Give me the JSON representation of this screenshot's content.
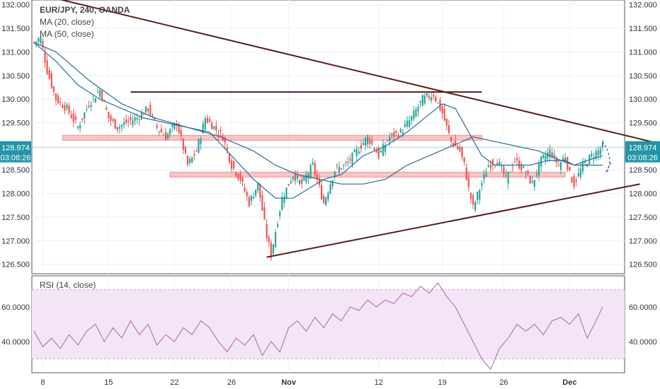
{
  "header": {
    "symbol": "EUR/JPY, 240, OANDA",
    "ma20": "MA (20, close)",
    "ma50": "MA (50, close)",
    "rsi": "RSI (14, close)"
  },
  "readout": {
    "price": "128.974",
    "countdown": "03:08:26"
  },
  "colors": {
    "up": "#26a69a",
    "down": "#ef5350",
    "ma20": "#1f6f9f",
    "ma50": "#2f6a8a",
    "trendline": "#5d1a1a",
    "zone": "#f08080",
    "rsi": "#b46cb4",
    "rsi_band": "#f3e5f5",
    "price_label": "#2196a6"
  },
  "chart_data": {
    "type": "candlestick",
    "title": "EUR/JPY, 240, OANDA",
    "price_axis": {
      "ylim": [
        126.3,
        132.1
      ],
      "ticks": [
        "132.000",
        "131.500",
        "131.000",
        "130.500",
        "130.000",
        "129.500",
        "129.000",
        "128.500",
        "128.000",
        "127.500",
        "127.000",
        "126.500"
      ]
    },
    "x_axis": {
      "ticks": [
        "8",
        "15",
        "22",
        "26",
        "Nov",
        "12",
        "19",
        "26",
        "Dec"
      ]
    },
    "last_price": 128.974,
    "anchors": [
      [
        0,
        131.2
      ],
      [
        3,
        131.3
      ],
      [
        6,
        130.6
      ],
      [
        10,
        130.0
      ],
      [
        15,
        129.8
      ],
      [
        20,
        129.4
      ],
      [
        25,
        129.9
      ],
      [
        30,
        130.2
      ],
      [
        34,
        129.6
      ],
      [
        38,
        129.4
      ],
      [
        42,
        129.5
      ],
      [
        47,
        129.6
      ],
      [
        52,
        129.8
      ],
      [
        56,
        129.4
      ],
      [
        60,
        129.2
      ],
      [
        65,
        129.5
      ],
      [
        70,
        128.6
      ],
      [
        74,
        128.9
      ],
      [
        78,
        129.6
      ],
      [
        82,
        129.4
      ],
      [
        86,
        129.2
      ],
      [
        90,
        128.6
      ],
      [
        94,
        128.3
      ],
      [
        98,
        127.8
      ],
      [
        102,
        128.2
      ],
      [
        106,
        127.1
      ],
      [
        108,
        126.7
      ],
      [
        110,
        127.2
      ],
      [
        113,
        127.9
      ],
      [
        118,
        128.4
      ],
      [
        122,
        128.2
      ],
      [
        127,
        128.6
      ],
      [
        132,
        127.8
      ],
      [
        137,
        128.5
      ],
      [
        142,
        128.6
      ],
      [
        147,
        128.9
      ],
      [
        152,
        129.2
      ],
      [
        157,
        128.8
      ],
      [
        162,
        129.2
      ],
      [
        167,
        129.3
      ],
      [
        172,
        129.6
      ],
      [
        177,
        130.0
      ],
      [
        182,
        130.1
      ],
      [
        186,
        129.7
      ],
      [
        190,
        129.1
      ],
      [
        194,
        128.9
      ],
      [
        196,
        128.6
      ],
      [
        198,
        128.1
      ],
      [
        200,
        127.7
      ],
      [
        203,
        128.1
      ],
      [
        207,
        128.6
      ],
      [
        211,
        128.7
      ],
      [
        215,
        128.3
      ],
      [
        219,
        128.7
      ],
      [
        223,
        128.5
      ],
      [
        227,
        128.2
      ],
      [
        231,
        128.7
      ],
      [
        235,
        128.9
      ],
      [
        239,
        128.6
      ],
      [
        242,
        128.8
      ],
      [
        244,
        128.4
      ],
      [
        246,
        128.2
      ],
      [
        250,
        128.6
      ],
      [
        254,
        128.8
      ],
      [
        257,
        128.9
      ],
      [
        259,
        129.0
      ]
    ],
    "ma20_anchors": [
      [
        0,
        131.2
      ],
      [
        10,
        130.8
      ],
      [
        20,
        130.3
      ],
      [
        30,
        130.0
      ],
      [
        40,
        129.8
      ],
      [
        50,
        129.6
      ],
      [
        60,
        129.5
      ],
      [
        70,
        129.4
      ],
      [
        80,
        129.3
      ],
      [
        90,
        128.8
      ],
      [
        100,
        128.3
      ],
      [
        110,
        127.9
      ],
      [
        118,
        127.9
      ],
      [
        125,
        128.1
      ],
      [
        132,
        128.3
      ],
      [
        140,
        128.4
      ],
      [
        150,
        128.8
      ],
      [
        160,
        129.0
      ],
      [
        170,
        129.3
      ],
      [
        178,
        129.6
      ],
      [
        186,
        129.9
      ],
      [
        192,
        129.8
      ],
      [
        198,
        129.3
      ],
      [
        204,
        128.8
      ],
      [
        210,
        128.6
      ],
      [
        218,
        128.6
      ],
      [
        226,
        128.6
      ],
      [
        234,
        128.7
      ],
      [
        242,
        128.7
      ],
      [
        246,
        128.6
      ],
      [
        252,
        128.7
      ],
      [
        259,
        128.8
      ]
    ],
    "ma50_anchors": [
      [
        0,
        131.2
      ],
      [
        10,
        131.0
      ],
      [
        25,
        130.4
      ],
      [
        40,
        129.9
      ],
      [
        55,
        129.6
      ],
      [
        70,
        129.4
      ],
      [
        85,
        129.2
      ],
      [
        100,
        128.9
      ],
      [
        110,
        128.6
      ],
      [
        120,
        128.4
      ],
      [
        130,
        128.3
      ],
      [
        140,
        128.2
      ],
      [
        150,
        128.2
      ],
      [
        160,
        128.3
      ],
      [
        170,
        128.6
      ],
      [
        180,
        128.8
      ],
      [
        190,
        129.0
      ],
      [
        200,
        129.2
      ],
      [
        210,
        129.1
      ],
      [
        220,
        129.0
      ],
      [
        230,
        128.9
      ],
      [
        240,
        128.7
      ],
      [
        246,
        128.6
      ],
      [
        252,
        128.6
      ],
      [
        259,
        128.6
      ]
    ],
    "trendlines": [
      {
        "from": [
          -5,
          132.3
        ],
        "to": [
          290,
          129.0
        ]
      },
      {
        "from": [
          106,
          126.65
        ],
        "to": [
          276,
          128.2
        ]
      },
      {
        "from": [
          44,
          130.15
        ],
        "to": [
          204,
          130.15
        ]
      }
    ],
    "zones": [
      {
        "from": [
          13,
          129.18
        ],
        "to": [
          204,
          129.18
        ]
      },
      {
        "from": [
          62,
          128.4
        ],
        "to": [
          242,
          128.4
        ]
      }
    ],
    "rsi": {
      "ylim": [
        22,
        78
      ],
      "ticks": [
        "60.0000",
        "40.0000"
      ],
      "band": [
        30,
        70
      ],
      "anchors": [
        [
          0,
          46
        ],
        [
          4,
          37
        ],
        [
          8,
          42
        ],
        [
          12,
          36
        ],
        [
          16,
          44
        ],
        [
          20,
          38
        ],
        [
          24,
          46
        ],
        [
          28,
          50
        ],
        [
          32,
          40
        ],
        [
          36,
          48
        ],
        [
          40,
          42
        ],
        [
          44,
          52
        ],
        [
          48,
          44
        ],
        [
          52,
          50
        ],
        [
          56,
          38
        ],
        [
          60,
          44
        ],
        [
          64,
          40
        ],
        [
          68,
          48
        ],
        [
          72,
          44
        ],
        [
          76,
          52
        ],
        [
          80,
          48
        ],
        [
          84,
          40
        ],
        [
          88,
          34
        ],
        [
          92,
          42
        ],
        [
          96,
          38
        ],
        [
          100,
          44
        ],
        [
          104,
          32
        ],
        [
          108,
          40
        ],
        [
          112,
          34
        ],
        [
          116,
          48
        ],
        [
          120,
          52
        ],
        [
          124,
          46
        ],
        [
          128,
          54
        ],
        [
          132,
          48
        ],
        [
          136,
          56
        ],
        [
          140,
          52
        ],
        [
          144,
          60
        ],
        [
          148,
          58
        ],
        [
          152,
          64
        ],
        [
          156,
          60
        ],
        [
          160,
          64
        ],
        [
          164,
          62
        ],
        [
          168,
          68
        ],
        [
          172,
          66
        ],
        [
          176,
          72
        ],
        [
          180,
          68
        ],
        [
          184,
          74
        ],
        [
          188,
          66
        ],
        [
          192,
          60
        ],
        [
          196,
          50
        ],
        [
          200,
          40
        ],
        [
          204,
          30
        ],
        [
          208,
          24
        ],
        [
          212,
          36
        ],
        [
          216,
          42
        ],
        [
          220,
          50
        ],
        [
          224,
          46
        ],
        [
          228,
          50
        ],
        [
          232,
          44
        ],
        [
          236,
          52
        ],
        [
          240,
          54
        ],
        [
          244,
          50
        ],
        [
          248,
          56
        ],
        [
          252,
          42
        ],
        [
          256,
          52
        ],
        [
          259,
          60
        ]
      ]
    }
  }
}
